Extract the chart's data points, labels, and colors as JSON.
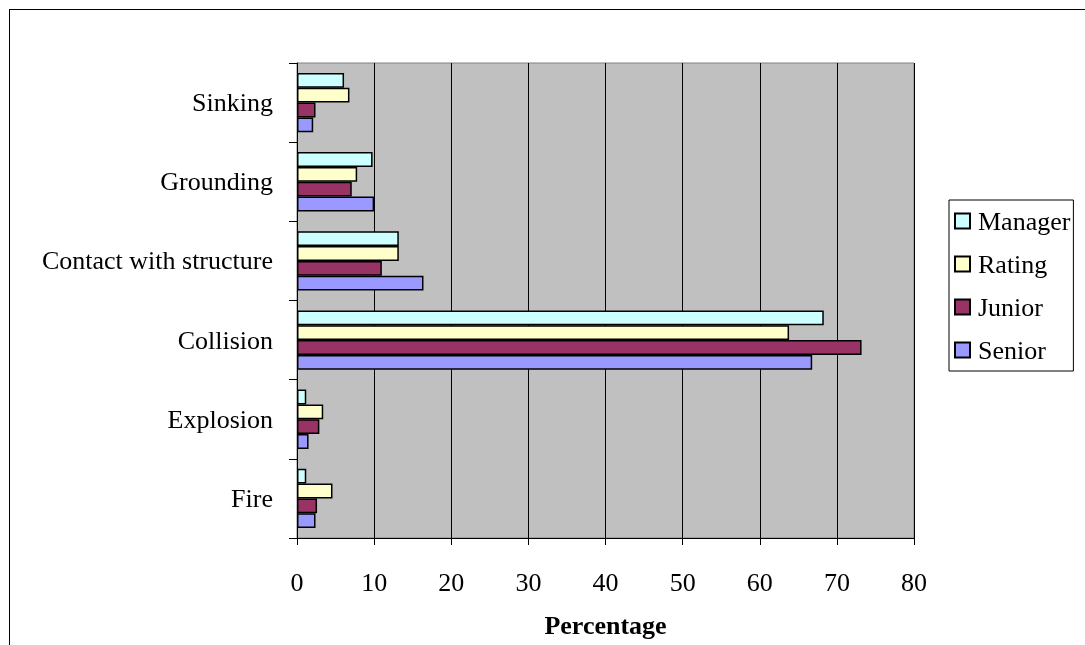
{
  "chart_data": {
    "type": "bar",
    "orientation": "horizontal",
    "xlabel": "Percentage",
    "categories": [
      "Sinking",
      "Grounding",
      "Contact with structure",
      "Collision",
      "Explosion",
      "Fire"
    ],
    "series": [
      {
        "name": "Manager",
        "color": "#ccffff",
        "values": [
          6.1,
          9.8,
          13.2,
          68.3,
          1.2,
          1.2
        ]
      },
      {
        "name": "Rating",
        "color": "#ffffcc",
        "values": [
          6.8,
          7.8,
          13.2,
          63.8,
          3.4,
          4.6
        ]
      },
      {
        "name": "Junior",
        "color": "#993366",
        "values": [
          2.4,
          7.1,
          11.0,
          73.2,
          2.9,
          2.6
        ]
      },
      {
        "name": "Senior",
        "color": "#9999ff",
        "values": [
          2.1,
          10.0,
          16.4,
          66.8,
          1.5,
          2.4
        ]
      }
    ],
    "xlim": [
      0,
      80
    ],
    "xticks": [
      0,
      10,
      20,
      30,
      40,
      50,
      60,
      70,
      80
    ],
    "grid": "x",
    "legend": "right"
  }
}
